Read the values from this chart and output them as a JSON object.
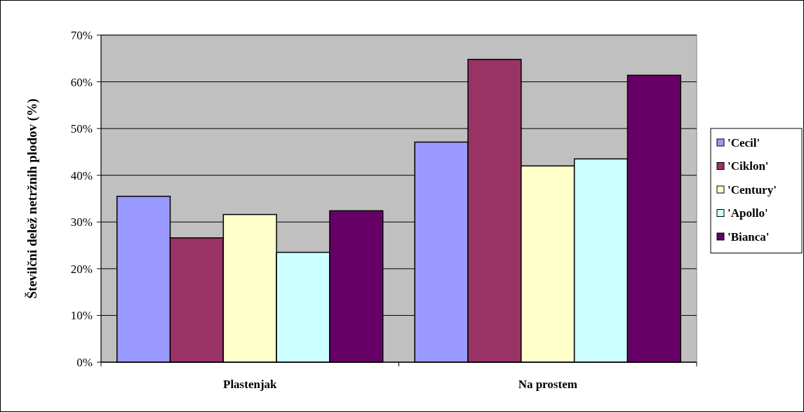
{
  "chart_data": {
    "type": "bar",
    "ylabel": "Številčni delež netržnih plodov (%)",
    "categories": [
      "Plastenjak",
      "Na prostem"
    ],
    "series": [
      {
        "name": "'Cecil'",
        "color": "#9999ff",
        "values": [
          35.5,
          47.1
        ]
      },
      {
        "name": "'Ciklon'",
        "color": "#993366",
        "values": [
          26.6,
          64.8
        ]
      },
      {
        "name": "'Century'",
        "color": "#ffffcc",
        "values": [
          31.6,
          42.0
        ]
      },
      {
        "name": "'Apollo'",
        "color": "#ccffff",
        "values": [
          23.5,
          43.5
        ]
      },
      {
        "name": "'Bianca'",
        "color": "#660066",
        "values": [
          32.4,
          61.4
        ]
      }
    ],
    "ylim": [
      0,
      70
    ],
    "yticks": [
      {
        "value": 0,
        "label": "0%"
      },
      {
        "value": 10,
        "label": "10%"
      },
      {
        "value": 20,
        "label": "20%"
      },
      {
        "value": 30,
        "label": "30%"
      },
      {
        "value": 40,
        "label": "40%"
      },
      {
        "value": 50,
        "label": "50%"
      },
      {
        "value": 60,
        "label": "60%"
      },
      {
        "value": 70,
        "label": "70%"
      }
    ],
    "grid": "y",
    "legend": "right"
  }
}
